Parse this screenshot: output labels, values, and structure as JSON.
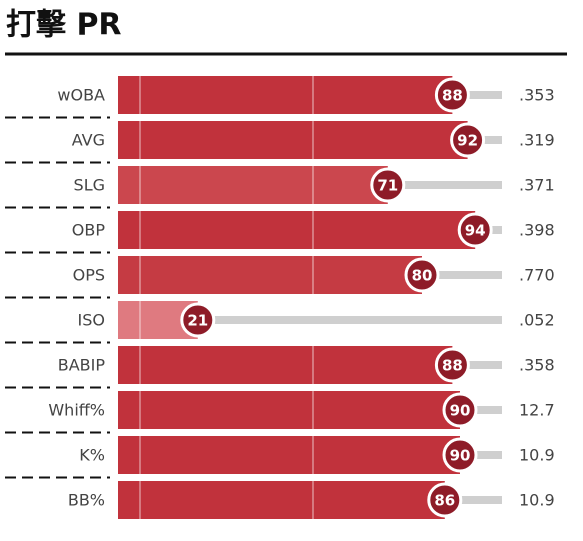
{
  "chart_data": {
    "type": "bar",
    "title": "打擊 PR",
    "categories": [
      "wOBA",
      "AVG",
      "SLG",
      "OBP",
      "OPS",
      "ISO",
      "BABIP",
      "Whiff%",
      "K%",
      "BB%"
    ],
    "values": [
      88,
      92,
      71,
      94,
      80,
      21,
      88,
      90,
      90,
      86
    ],
    "colors": [
      "#c1323c",
      "#c1323c",
      "#cb474e",
      "#c1323c",
      "#c53b43",
      "#df7a80",
      "#c1323c",
      "#c1323c",
      "#c1323c",
      "#c1323c"
    ],
    "stats": [
      ".353",
      ".319",
      ".371",
      ".398",
      ".770",
      ".052",
      ".358",
      "12.7",
      "10.9",
      "10.9"
    ],
    "xlim": [
      0,
      100
    ]
  }
}
